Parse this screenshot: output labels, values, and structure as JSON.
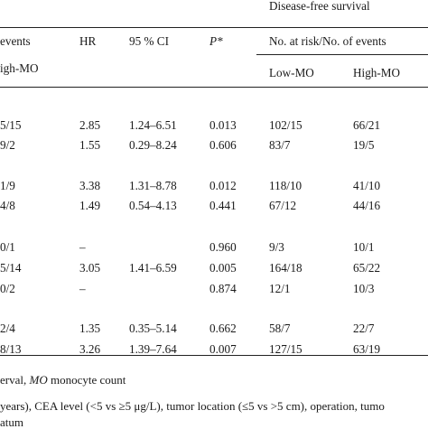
{
  "header": {
    "disease_free_title": "Disease-free survival",
    "events_frag": "events",
    "hr": "HR",
    "ci": "95 % CI",
    "p": "P*",
    "risk_events": "No. at risk/No. of events",
    "high_mo_frag": "igh-MO",
    "low_mo": "Low-MO",
    "high_mo": "High-MO"
  },
  "rows": [
    {
      "events": "5/15",
      "hr": "2.85",
      "ci": "1.24–6.51",
      "p": "0.013",
      "low": "102/15",
      "high": "66/21"
    },
    {
      "events": "9/2",
      "hr": "1.55",
      "ci": "0.29–8.24",
      "p": "0.606",
      "low": "83/7",
      "high": "19/5"
    },
    {
      "events": "1/9",
      "hr": "3.38",
      "ci": "1.31–8.78",
      "p": "0.012",
      "low": "118/10",
      "high": "41/10"
    },
    {
      "events": "4/8",
      "hr": "1.49",
      "ci": "0.54–4.13",
      "p": "0.441",
      "low": "67/12",
      "high": "44/16"
    },
    {
      "events": "0/1",
      "hr": "–",
      "ci": "",
      "p": "0.960",
      "low": "9/3",
      "high": "10/1"
    },
    {
      "events": "5/14",
      "hr": "3.05",
      "ci": "1.41–6.59",
      "p": "0.005",
      "low": "164/18",
      "high": "65/22"
    },
    {
      "events": "0/2",
      "hr": "–",
      "ci": "",
      "p": "0.874",
      "low": "12/1",
      "high": "10/3"
    },
    {
      "events": "2/4",
      "hr": "1.35",
      "ci": "0.35–5.14",
      "p": "0.662",
      "low": "58/7",
      "high": "22/7"
    },
    {
      "events": "8/13",
      "hr": "3.26",
      "ci": "1.39–7.64",
      "p": "0.007",
      "low": "127/15",
      "high": "63/19"
    }
  ],
  "footnotes": {
    "line1_a": "erval, ",
    "line1_mo": "MO",
    "line1_b": " monocyte count",
    "line2": "years), CEA level (<5 vs ≥5 μg/L), tumor location (≤5 vs >5 cm), operation, tumo",
    "line3": "atum"
  }
}
